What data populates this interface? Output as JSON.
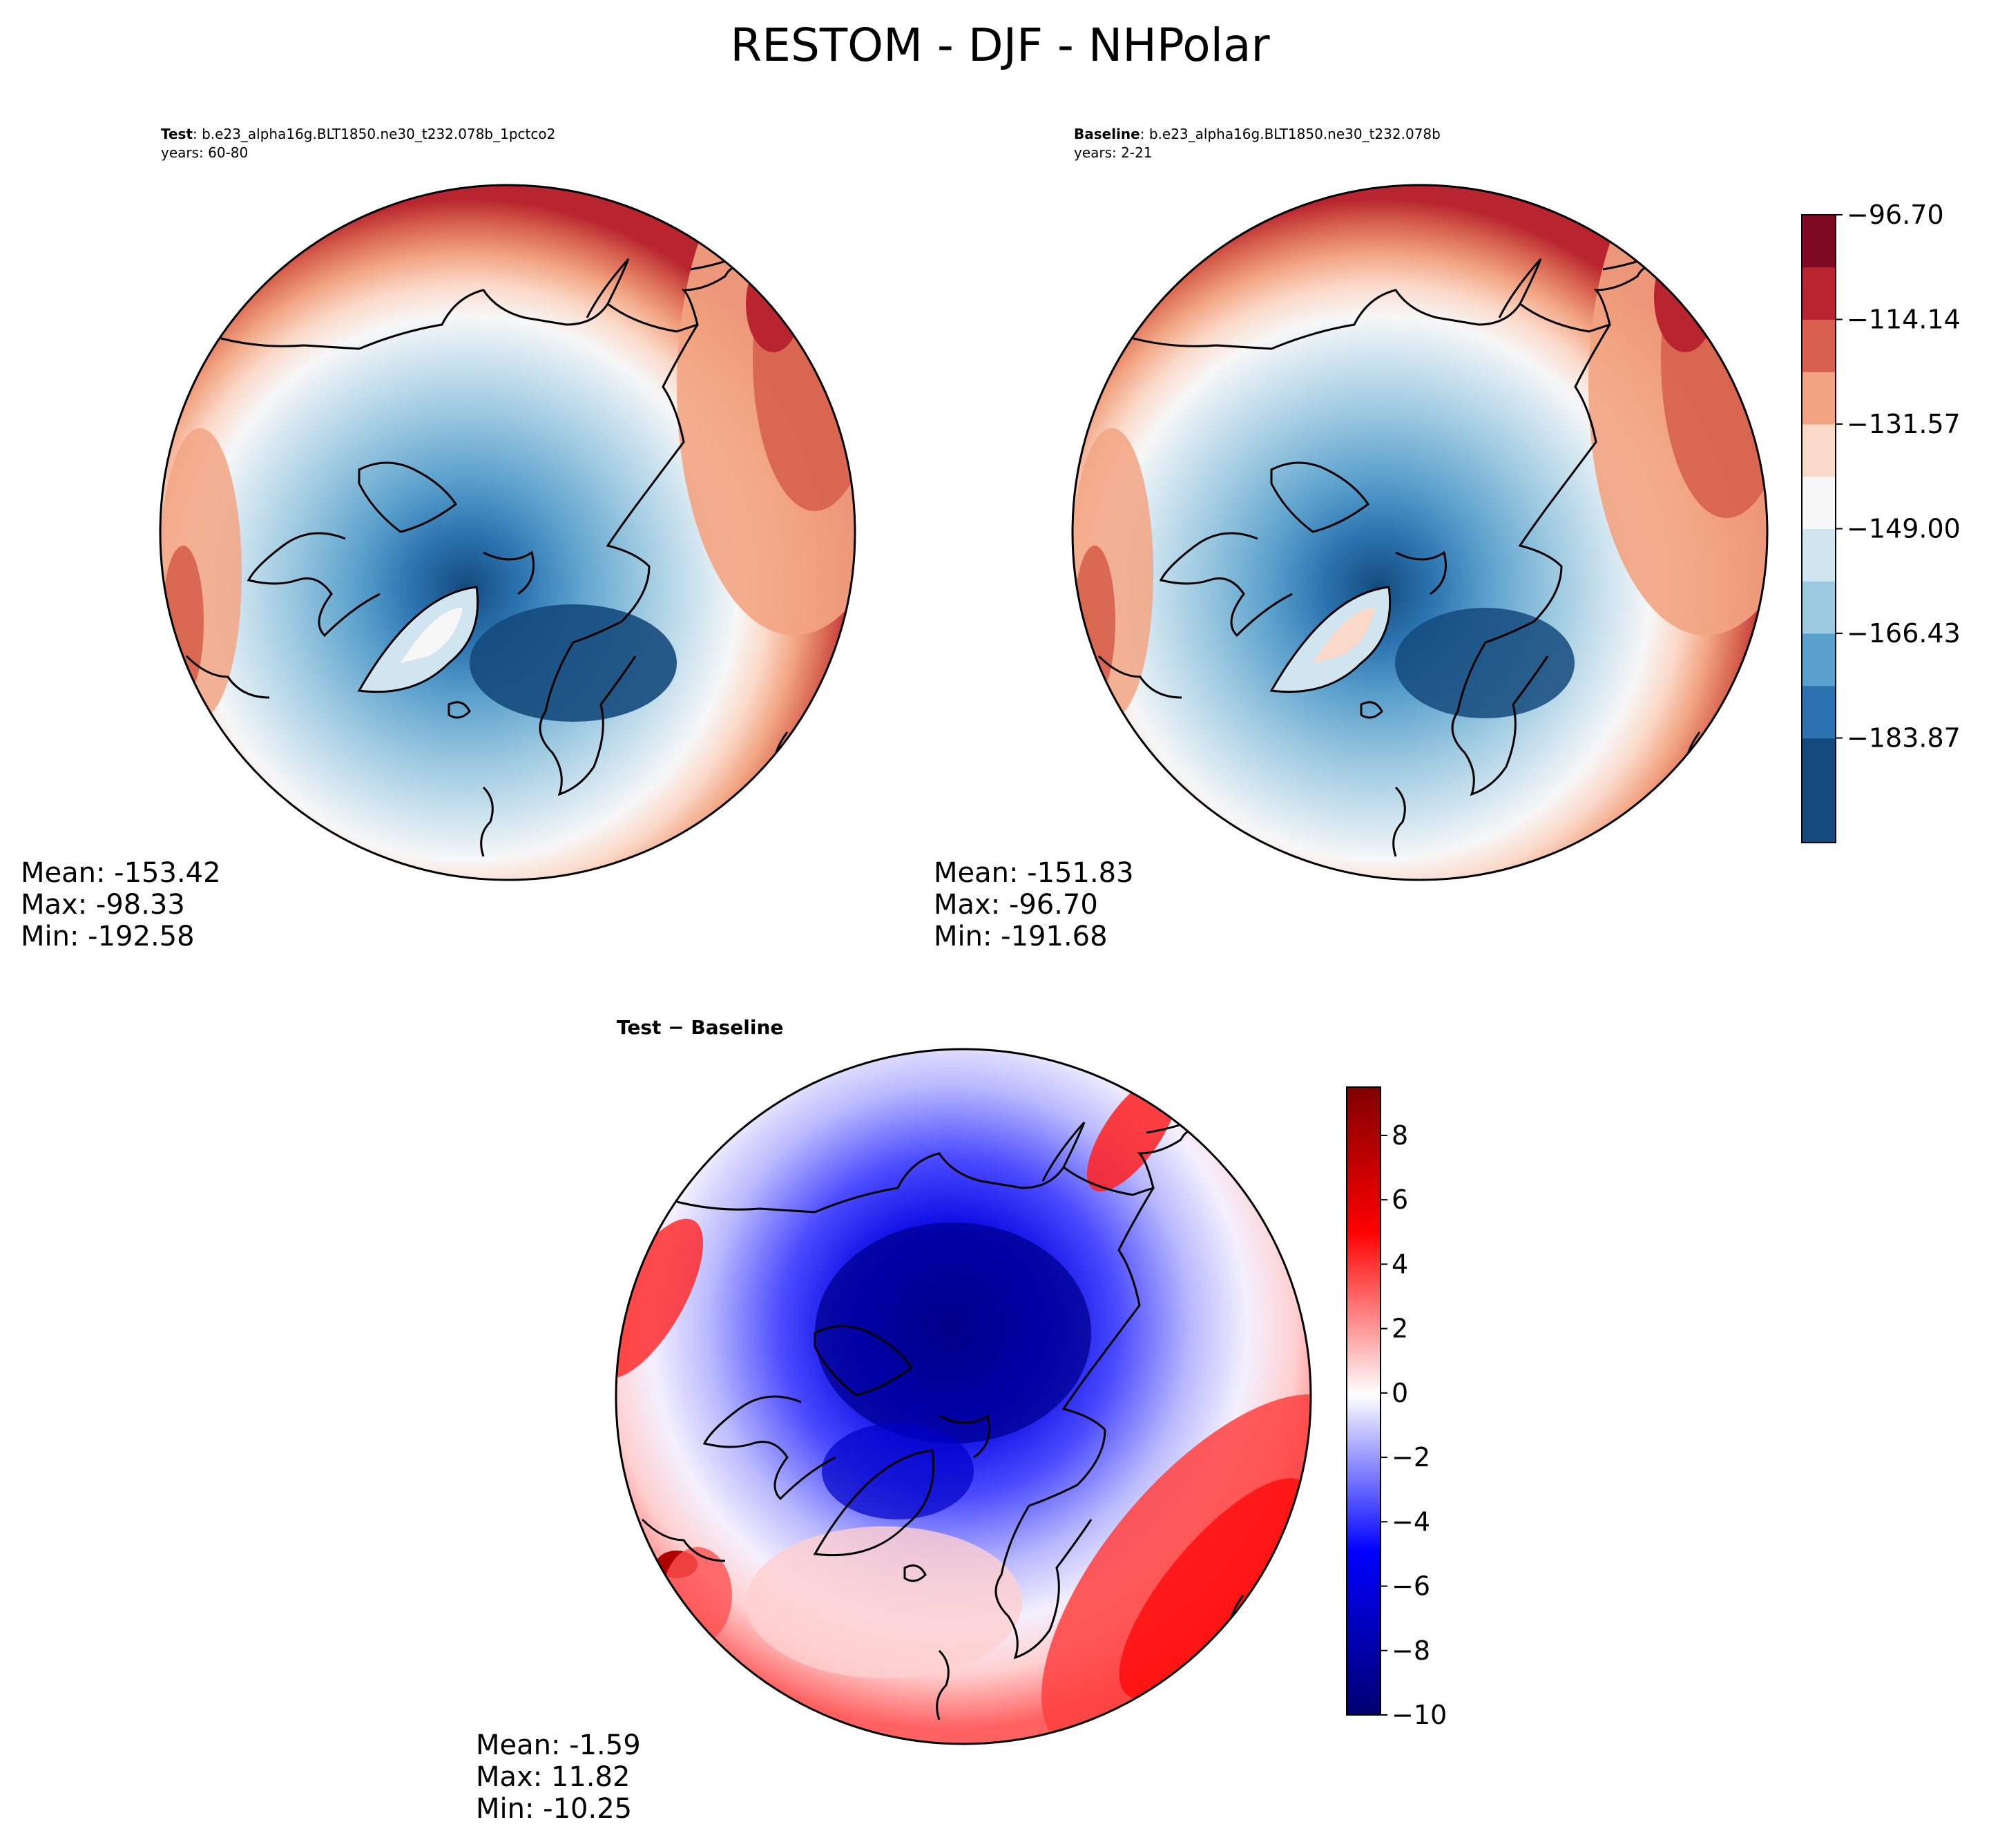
{
  "title": "RESTOM - DJF - NHPolar",
  "colors": {
    "border": "#000000",
    "coast": "#000000",
    "rdbu": [
      "#144a7c",
      "#2b73b0",
      "#5aa0cc",
      "#9ecae1",
      "#d1e5f0",
      "#f7f7f7",
      "#fbd9c9",
      "#f2a482",
      "#d6604d",
      "#b9252f",
      "#7d0a22"
    ],
    "seismic": [
      "#000070",
      "#0000ff",
      "#ffffff",
      "#ff0000",
      "#7f0000"
    ]
  },
  "panels": {
    "test": {
      "label": "Test",
      "case": ": b.e23_alpha16g.BLT1850.ne30_t232.078b_1pctco2",
      "years": "years: 60-80",
      "stats": {
        "mean": "Mean: -153.42",
        "max": "Max: -98.33",
        "min": "Min: -192.58"
      }
    },
    "baseline": {
      "label": "Baseline",
      "case": ": b.e23_alpha16g.BLT1850.ne30_t232.078b",
      "years": "years: 2-21",
      "stats": {
        "mean": "Mean: -151.83",
        "max": "Max: -96.70",
        "min": "Min: -191.68"
      }
    },
    "diff": {
      "label": "Test − Baseline",
      "stats": {
        "mean": "Mean: -1.59",
        "max": "Max: 11.82",
        "min": "Min: -10.25"
      }
    }
  },
  "chart_data": [
    {
      "type": "heatmap",
      "name": "test",
      "projection": "north-polar-stereographic",
      "variable": "RESTOM",
      "season": "DJF",
      "mean": -153.42,
      "max": -98.33,
      "min": -192.58,
      "colorbar_levels": [
        -201.3,
        -192.58,
        -183.87,
        -175.15,
        -166.43,
        -157.72,
        -149.0,
        -140.28,
        -131.57,
        -122.85,
        -114.14,
        -105.42,
        -96.7
      ],
      "colorbar_ticks": [
        "−96.70",
        "−114.14",
        "−131.57",
        "−149.00",
        "−166.43",
        "−183.87"
      ],
      "colorbar_tick_values": [
        -96.7,
        -114.14,
        -131.57,
        -149.0,
        -166.43,
        -183.87
      ]
    },
    {
      "type": "heatmap",
      "name": "baseline",
      "projection": "north-polar-stereographic",
      "variable": "RESTOM",
      "season": "DJF",
      "mean": -151.83,
      "max": -96.7,
      "min": -191.68,
      "colorbar_levels": [
        -201.3,
        -192.58,
        -183.87,
        -175.15,
        -166.43,
        -157.72,
        -149.0,
        -140.28,
        -131.57,
        -122.85,
        -114.14,
        -105.42,
        -96.7
      ]
    },
    {
      "type": "heatmap",
      "name": "difference",
      "projection": "north-polar-stereographic",
      "mean": -1.59,
      "max": 11.82,
      "min": -10.25,
      "colorbar_range": [
        -10,
        9.5
      ],
      "colorbar_ticks": [
        "8",
        "6",
        "4",
        "2",
        "0",
        "−2",
        "−4",
        "−6",
        "−8",
        "−10"
      ],
      "colorbar_tick_values": [
        8,
        6,
        4,
        2,
        0,
        -2,
        -4,
        -6,
        -8,
        -10
      ]
    }
  ]
}
